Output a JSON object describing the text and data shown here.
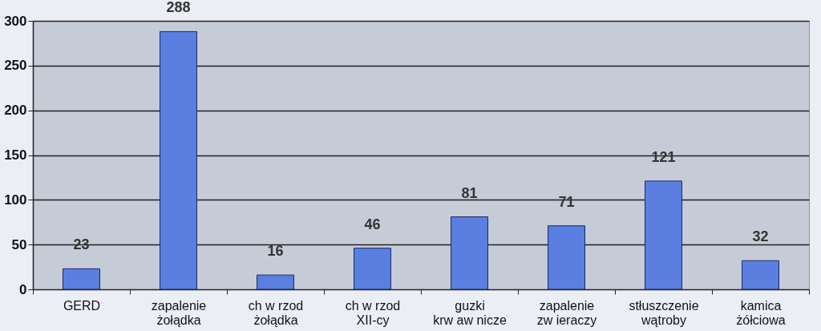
{
  "chart_data": {
    "type": "bar",
    "categories": [
      "GERD",
      "zapalenie\nżołądka",
      "ch w rzod\nżołądka",
      "ch w rzod\nXII-cy",
      "guzki\nkrw aw nicze",
      "zapalenie\nzw ieraczy",
      "stłuszczenie\nwątroby",
      "kamica\nżółciowa"
    ],
    "values": [
      23,
      288,
      16,
      46,
      81,
      71,
      121,
      32
    ],
    "color": "#5b7fe0",
    "ylim": [
      0,
      300
    ],
    "yticks": [
      0,
      50,
      100,
      150,
      200,
      250,
      300
    ],
    "grid": "y",
    "data_labels": true
  }
}
